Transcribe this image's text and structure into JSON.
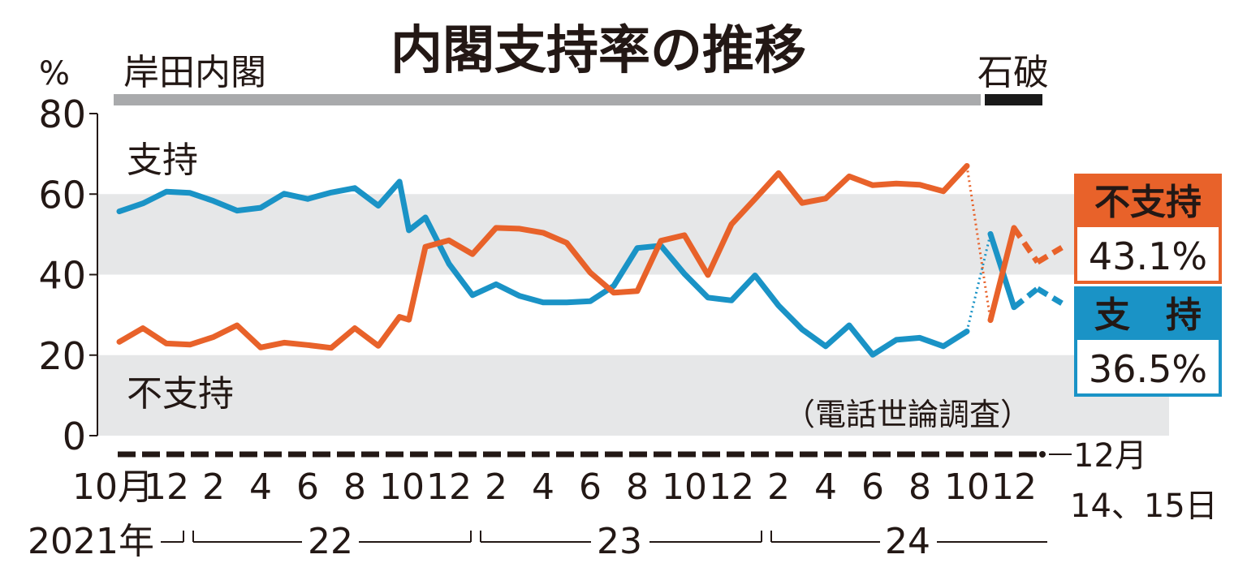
{
  "chart_data": {
    "type": "line",
    "title": "内閣支持率の推移",
    "y_unit": "%",
    "ylim": [
      0,
      80
    ],
    "yticks": [
      "0",
      "20",
      "40",
      "60",
      "80"
    ],
    "x_tick_labels": [
      "10月",
      "12",
      "2",
      "4",
      "6",
      "8",
      "10",
      "12",
      "2",
      "4",
      "6",
      "8",
      "10",
      "12",
      "2",
      "4",
      "6",
      "8",
      "10",
      "12"
    ],
    "final_tick_label_line1": "12月",
    "final_tick_label_line2": "14、15日",
    "year_labels": [
      "2021年",
      "22",
      "23",
      "24"
    ],
    "cabinets": [
      {
        "name": "岸田内閣",
        "color": "#a9aaac"
      },
      {
        "name": "石破",
        "color": "#1a1a1a"
      }
    ],
    "series_labels": {
      "support": "支持",
      "nonsupport": "不支持"
    },
    "source_note": "（電話世論調査）",
    "colors": {
      "support": "#1a93c6",
      "nonsupport": "#e8622a",
      "band": "#e6e7e8"
    },
    "series": [
      {
        "key": "support",
        "x_month_index": [
          0,
          1,
          2,
          3,
          4,
          5,
          6,
          7,
          8,
          9,
          10,
          11,
          11.9,
          12.3,
          13,
          14,
          15,
          16,
          17,
          18,
          19,
          20,
          21,
          22,
          23,
          24,
          25,
          26,
          27,
          28,
          29,
          30,
          31,
          32,
          33,
          34,
          35,
          36,
          37,
          38
        ],
        "values": [
          55.7,
          57.7,
          60.6,
          60.3,
          58.3,
          55.9,
          56.6,
          60.1,
          58.8,
          60.4,
          61.5,
          57.1,
          63.1,
          51.0,
          54.2,
          42.7,
          34.9,
          37.6,
          34.7,
          33.1,
          33.1,
          33.4,
          37.2,
          46.6,
          47.2,
          40.2,
          34.3,
          33.6,
          39.8,
          32.3,
          26.4,
          22.2,
          27.4,
          20.1,
          23.8,
          24.3,
          22.2,
          25.9,
          50.1,
          31.9
        ],
        "final": {
          "x_month_index": 39.0,
          "value": 36.5,
          "label": "支　持",
          "value_label": "36.5%"
        }
      },
      {
        "key": "nonsupport",
        "x_month_index": [
          0,
          1,
          2,
          3,
          4,
          5,
          6,
          7,
          8,
          9,
          10,
          11,
          11.9,
          12.3,
          13,
          14,
          15,
          16,
          17,
          18,
          19,
          20,
          21,
          22,
          23,
          24,
          25,
          26,
          27,
          28,
          29,
          30,
          31,
          32,
          33,
          34,
          35,
          36,
          37,
          38
        ],
        "values": [
          23.3,
          26.7,
          22.9,
          22.6,
          24.5,
          27.4,
          21.9,
          23.1,
          22.5,
          21.8,
          26.7,
          22.3,
          29.5,
          28.8,
          46.9,
          48.5,
          45.1,
          51.6,
          51.4,
          50.4,
          47.9,
          40.5,
          35.5,
          35.9,
          48.4,
          49.8,
          39.9,
          52.5,
          58.8,
          65.2,
          57.8,
          58.9,
          64.4,
          62.2,
          62.6,
          62.3,
          60.7,
          67.0,
          28.7,
          51.6
        ],
        "final": {
          "x_month_index": 39.0,
          "value": 43.1,
          "label": "不支持",
          "value_label": "43.1%"
        }
      }
    ]
  }
}
